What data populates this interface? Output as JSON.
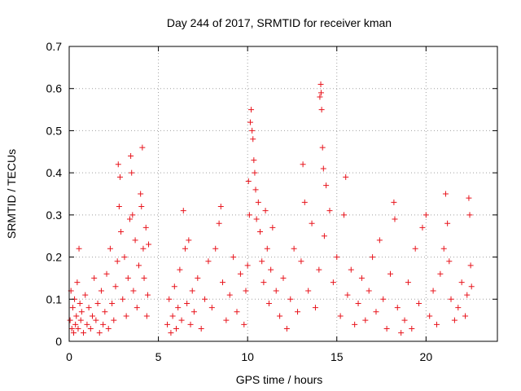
{
  "chart_data": {
    "type": "scatter",
    "title": "Day 244 of 2017, SRMTID for receiver kman",
    "xlabel": "GPS time / hours",
    "ylabel": "SRMTID / TECUs",
    "xlim": [
      0,
      24
    ],
    "ylim": [
      0,
      0.7
    ],
    "x_ticks": [
      "0",
      "5",
      "10",
      "15",
      "20"
    ],
    "y_ticks": [
      "0",
      "0.1",
      "0.2",
      "0.3",
      "0.4",
      "0.5",
      "0.6",
      "0.7"
    ],
    "grid": true,
    "marker": "+",
    "color": "#e8141c",
    "series": [
      {
        "points": [
          [
            0.05,
            0.05
          ],
          [
            0.1,
            0.12
          ],
          [
            0.15,
            0.03
          ],
          [
            0.2,
            0.08
          ],
          [
            0.25,
            0.02
          ],
          [
            0.3,
            0.1
          ],
          [
            0.35,
            0.04
          ],
          [
            0.4,
            0.06
          ],
          [
            0.45,
            0.14
          ],
          [
            0.5,
            0.03
          ],
          [
            0.55,
            0.22
          ],
          [
            0.6,
            0.09
          ],
          [
            0.65,
            0.05
          ],
          [
            0.7,
            0.07
          ],
          [
            0.8,
            0.02
          ],
          [
            0.9,
            0.11
          ],
          [
            1.0,
            0.04
          ],
          [
            1.1,
            0.08
          ],
          [
            1.2,
            0.03
          ],
          [
            1.3,
            0.06
          ],
          [
            1.4,
            0.15
          ],
          [
            1.5,
            0.05
          ],
          [
            1.6,
            0.09
          ],
          [
            1.7,
            0.02
          ],
          [
            1.8,
            0.12
          ],
          [
            1.9,
            0.04
          ],
          [
            2.0,
            0.07
          ],
          [
            2.1,
            0.16
          ],
          [
            2.2,
            0.03
          ],
          [
            2.3,
            0.22
          ],
          [
            2.4,
            0.09
          ],
          [
            2.5,
            0.05
          ],
          [
            2.6,
            0.13
          ],
          [
            2.7,
            0.19
          ],
          [
            2.75,
            0.42
          ],
          [
            2.8,
            0.32
          ],
          [
            2.85,
            0.39
          ],
          [
            2.9,
            0.26
          ],
          [
            3.0,
            0.1
          ],
          [
            3.1,
            0.2
          ],
          [
            3.2,
            0.06
          ],
          [
            3.3,
            0.15
          ],
          [
            3.4,
            0.29
          ],
          [
            3.45,
            0.44
          ],
          [
            3.5,
            0.4
          ],
          [
            3.55,
            0.3
          ],
          [
            3.6,
            0.12
          ],
          [
            3.7,
            0.24
          ],
          [
            3.8,
            0.08
          ],
          [
            3.9,
            0.18
          ],
          [
            4.0,
            0.35
          ],
          [
            4.05,
            0.32
          ],
          [
            4.1,
            0.46
          ],
          [
            4.15,
            0.22
          ],
          [
            4.2,
            0.15
          ],
          [
            4.3,
            0.27
          ],
          [
            4.35,
            0.06
          ],
          [
            4.4,
            0.11
          ],
          [
            4.45,
            0.23
          ],
          [
            5.5,
            0.04
          ],
          [
            5.6,
            0.1
          ],
          [
            5.7,
            0.02
          ],
          [
            5.8,
            0.06
          ],
          [
            5.9,
            0.13
          ],
          [
            6.0,
            0.03
          ],
          [
            6.1,
            0.08
          ],
          [
            6.2,
            0.17
          ],
          [
            6.3,
            0.05
          ],
          [
            6.4,
            0.31
          ],
          [
            6.5,
            0.22
          ],
          [
            6.6,
            0.09
          ],
          [
            6.7,
            0.24
          ],
          [
            6.8,
            0.04
          ],
          [
            6.9,
            0.12
          ],
          [
            7.0,
            0.07
          ],
          [
            7.2,
            0.15
          ],
          [
            7.4,
            0.03
          ],
          [
            7.6,
            0.1
          ],
          [
            7.8,
            0.19
          ],
          [
            8.0,
            0.08
          ],
          [
            8.2,
            0.22
          ],
          [
            8.4,
            0.28
          ],
          [
            8.5,
            0.32
          ],
          [
            8.6,
            0.14
          ],
          [
            8.8,
            0.05
          ],
          [
            9.0,
            0.11
          ],
          [
            9.2,
            0.2
          ],
          [
            9.4,
            0.07
          ],
          [
            9.6,
            0.16
          ],
          [
            9.8,
            0.04
          ],
          [
            9.9,
            0.12
          ],
          [
            10.0,
            0.18
          ],
          [
            10.05,
            0.38
          ],
          [
            10.1,
            0.3
          ],
          [
            10.15,
            0.52
          ],
          [
            10.2,
            0.55
          ],
          [
            10.25,
            0.5
          ],
          [
            10.3,
            0.48
          ],
          [
            10.35,
            0.43
          ],
          [
            10.4,
            0.4
          ],
          [
            10.45,
            0.36
          ],
          [
            10.5,
            0.29
          ],
          [
            10.6,
            0.33
          ],
          [
            10.7,
            0.26
          ],
          [
            10.8,
            0.19
          ],
          [
            10.9,
            0.14
          ],
          [
            11.0,
            0.31
          ],
          [
            11.1,
            0.22
          ],
          [
            11.2,
            0.09
          ],
          [
            11.3,
            0.17
          ],
          [
            11.4,
            0.27
          ],
          [
            11.6,
            0.12
          ],
          [
            11.8,
            0.06
          ],
          [
            12.0,
            0.15
          ],
          [
            12.2,
            0.03
          ],
          [
            12.4,
            0.1
          ],
          [
            12.6,
            0.22
          ],
          [
            12.8,
            0.07
          ],
          [
            13.0,
            0.19
          ],
          [
            13.1,
            0.42
          ],
          [
            13.2,
            0.33
          ],
          [
            13.4,
            0.12
          ],
          [
            13.6,
            0.28
          ],
          [
            13.8,
            0.08
          ],
          [
            14.0,
            0.17
          ],
          [
            14.05,
            0.58
          ],
          [
            14.1,
            0.61
          ],
          [
            14.12,
            0.59
          ],
          [
            14.15,
            0.55
          ],
          [
            14.2,
            0.46
          ],
          [
            14.25,
            0.41
          ],
          [
            14.3,
            0.25
          ],
          [
            14.4,
            0.37
          ],
          [
            14.6,
            0.31
          ],
          [
            14.8,
            0.14
          ],
          [
            15.0,
            0.2
          ],
          [
            15.2,
            0.06
          ],
          [
            15.4,
            0.3
          ],
          [
            15.5,
            0.39
          ],
          [
            15.6,
            0.11
          ],
          [
            15.8,
            0.17
          ],
          [
            16.0,
            0.04
          ],
          [
            16.2,
            0.09
          ],
          [
            16.4,
            0.15
          ],
          [
            16.6,
            0.05
          ],
          [
            16.8,
            0.12
          ],
          [
            17.0,
            0.2
          ],
          [
            17.2,
            0.07
          ],
          [
            17.4,
            0.24
          ],
          [
            17.6,
            0.1
          ],
          [
            17.8,
            0.03
          ],
          [
            18.0,
            0.16
          ],
          [
            18.2,
            0.33
          ],
          [
            18.25,
            0.29
          ],
          [
            18.4,
            0.08
          ],
          [
            18.6,
            0.02
          ],
          [
            18.8,
            0.05
          ],
          [
            19.0,
            0.14
          ],
          [
            19.2,
            0.03
          ],
          [
            19.4,
            0.22
          ],
          [
            19.6,
            0.09
          ],
          [
            19.8,
            0.27
          ],
          [
            20.0,
            0.3
          ],
          [
            20.2,
            0.06
          ],
          [
            20.4,
            0.12
          ],
          [
            20.6,
            0.04
          ],
          [
            20.8,
            0.16
          ],
          [
            21.0,
            0.22
          ],
          [
            21.1,
            0.35
          ],
          [
            21.2,
            0.28
          ],
          [
            21.3,
            0.19
          ],
          [
            21.4,
            0.1
          ],
          [
            21.6,
            0.05
          ],
          [
            21.8,
            0.08
          ],
          [
            22.0,
            0.14
          ],
          [
            22.2,
            0.06
          ],
          [
            22.3,
            0.11
          ],
          [
            22.4,
            0.34
          ],
          [
            22.45,
            0.3
          ],
          [
            22.5,
            0.18
          ],
          [
            22.55,
            0.13
          ]
        ]
      }
    ]
  }
}
